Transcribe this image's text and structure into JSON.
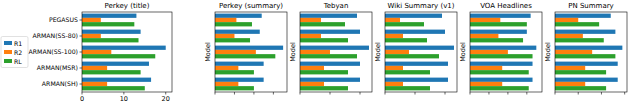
{
  "chart_data": [
    {
      "type": "bar",
      "orientation": "horizontal",
      "title": "Perkey (title)",
      "categories": [
        "PEGASUS",
        "ARMAN(SS-80)",
        "ARMAN(SS-100)",
        "ARMAN(MSR)",
        "ARMAN(SH)"
      ],
      "series": [
        {
          "name": "R1",
          "color": "#1f77b4",
          "values": [
            13,
            14,
            20,
            16,
            16.5
          ]
        },
        {
          "name": "R2",
          "color": "#ff7f0e",
          "values": [
            4.5,
            4.5,
            7,
            6,
            6
          ]
        },
        {
          "name": "RL",
          "color": "#2ca02c",
          "values": [
            12.5,
            13.5,
            17.5,
            14,
            15
          ]
        }
      ],
      "xlim": [
        0,
        21.5
      ],
      "xticks": [
        0,
        10,
        20
      ],
      "legend": "center left",
      "tick_labels": true
    },
    {
      "type": "bar",
      "orientation": "horizontal",
      "title": "Perkey (summary)",
      "y_label": "Model",
      "series": [
        {
          "color": "#1f77b4",
          "values": [
            24,
            23,
            35,
            25,
            25
          ]
        },
        {
          "color": "#ff7f0e",
          "values": [
            11,
            10,
            21,
            12,
            12
          ]
        },
        {
          "color": "#2ca02c",
          "values": [
            19,
            18,
            31,
            20,
            20
          ]
        }
      ],
      "xlim": [
        0,
        37
      ],
      "xticks": [
        0,
        10,
        20,
        30
      ],
      "tick_labels": false
    },
    {
      "type": "bar",
      "orientation": "horizontal",
      "title": "Tebyan",
      "y_label": "Model",
      "series": [
        {
          "color": "#1f77b4",
          "values": [
            19,
            20,
            23,
            20,
            20
          ]
        },
        {
          "color": "#ff7f0e",
          "values": [
            7,
            7,
            10,
            8,
            8
          ]
        },
        {
          "color": "#2ca02c",
          "values": [
            15,
            16,
            19,
            16,
            16
          ]
        }
      ],
      "xlim": [
        0,
        24
      ],
      "xticks": [
        0,
        10,
        20
      ],
      "tick_labels": false
    },
    {
      "type": "bar",
      "orientation": "horizontal",
      "title": "Wiki Summary (v1)",
      "y_label": "Model",
      "series": [
        {
          "color": "#1f77b4",
          "values": [
            19,
            20,
            23,
            21,
            21
          ]
        },
        {
          "color": "#ff7f0e",
          "values": [
            5,
            6,
            8,
            6,
            6
          ]
        },
        {
          "color": "#2ca02c",
          "values": [
            13,
            14,
            18,
            15,
            15
          ]
        }
      ],
      "xlim": [
        0,
        24
      ],
      "xticks": [
        0,
        10,
        20
      ],
      "tick_labels": false
    },
    {
      "type": "bar",
      "orientation": "horizontal",
      "title": "VOA Headlines",
      "y_label": "Model",
      "series": [
        {
          "color": "#1f77b4",
          "values": [
            32,
            30,
            35,
            33,
            33
          ]
        },
        {
          "color": "#ff7f0e",
          "values": [
            16,
            15,
            20,
            17,
            17
          ]
        },
        {
          "color": "#2ca02c",
          "values": [
            30,
            28,
            33,
            31,
            31
          ]
        }
      ],
      "xlim": [
        0,
        38
      ],
      "xticks": [
        0,
        10,
        20,
        30
      ],
      "tick_labels": false
    },
    {
      "type": "bar",
      "orientation": "horizontal",
      "title": "PN Summary",
      "y_label": "Model",
      "series": [
        {
          "color": "#1f77b4",
          "values": [
            24,
            26,
            29,
            27,
            27
          ]
        },
        {
          "color": "#ff7f0e",
          "values": [
            10,
            12,
            16,
            13,
            13
          ]
        },
        {
          "color": "#2ca02c",
          "values": [
            19,
            21,
            26,
            22,
            22
          ]
        }
      ],
      "xlim": [
        0,
        31
      ],
      "xticks": [
        0,
        10,
        20,
        30
      ],
      "tick_labels": false
    }
  ]
}
